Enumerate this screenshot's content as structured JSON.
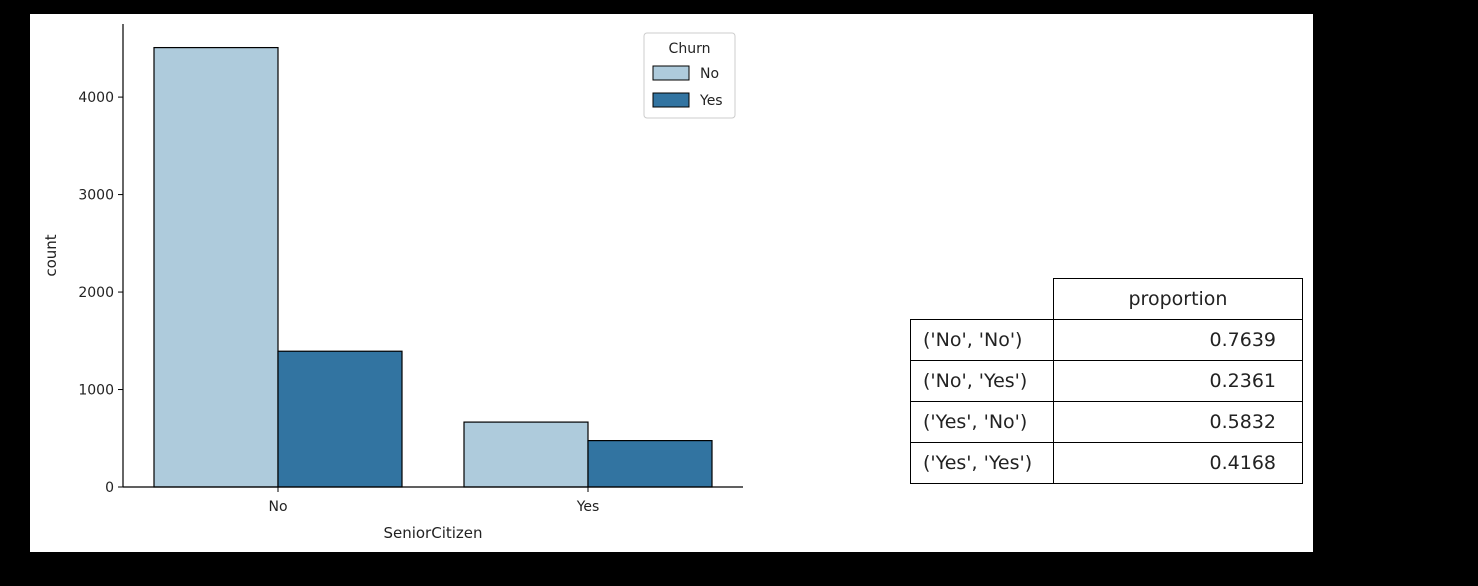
{
  "chart_data": {
    "type": "bar",
    "xlabel": "SeniorCitizen",
    "ylabel": "count",
    "categories": [
      "No",
      "Yes"
    ],
    "ylim": [
      0,
      4750
    ],
    "yticks": [
      0,
      1000,
      2000,
      3000,
      4000
    ],
    "legend": {
      "title": "Churn",
      "placement": "upper-right"
    },
    "series": [
      {
        "name": "No",
        "color": "#aecbdc",
        "values": [
          4508,
          666
        ]
      },
      {
        "name": "Yes",
        "color": "#3274a1",
        "values": [
          1393,
          476
        ]
      }
    ],
    "grid": false
  },
  "table": {
    "column_header": "proportion",
    "rows": [
      {
        "index": "('No', 'No')",
        "value": "0.7639"
      },
      {
        "index": "('No', 'Yes')",
        "value": "0.2361"
      },
      {
        "index": "('Yes', 'No')",
        "value": "0.5832"
      },
      {
        "index": "('Yes', 'Yes')",
        "value": "0.4168"
      }
    ]
  }
}
